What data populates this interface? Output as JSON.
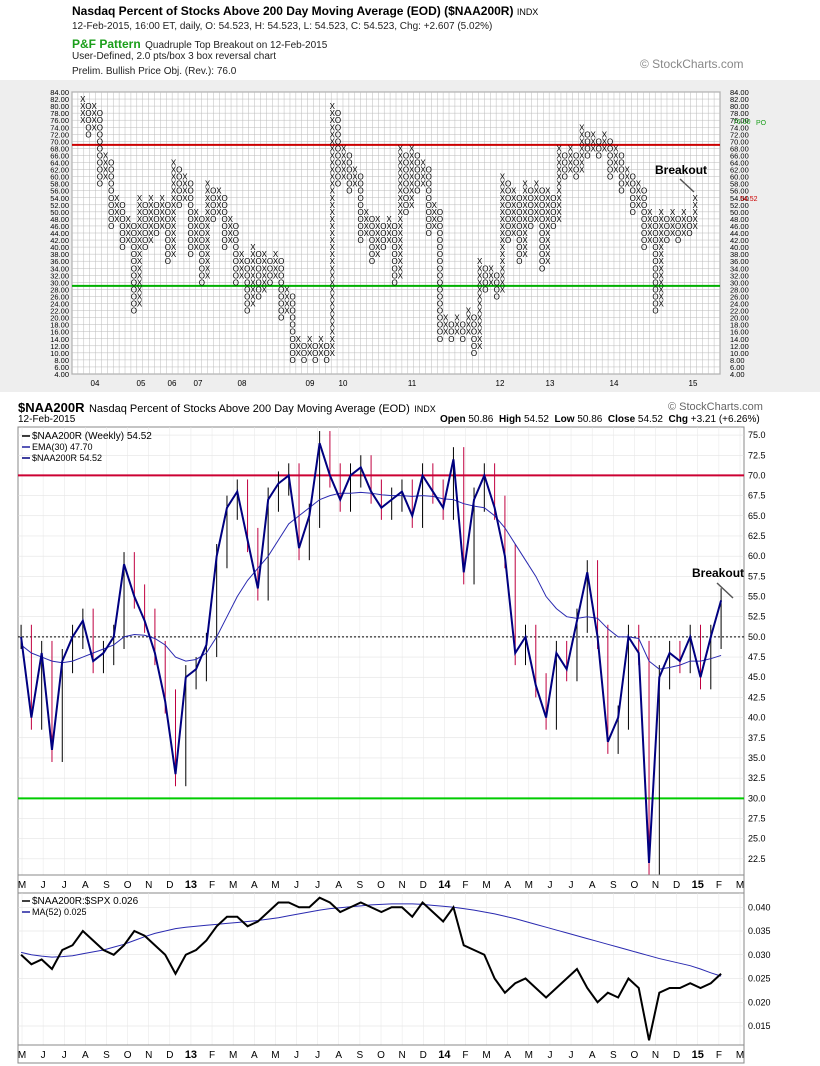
{
  "pf": {
    "title": "Nasdaq Percent of Stocks Above 200 Day Moving Average (EOD) ($NAA200R)",
    "exchange": "INDX",
    "info": "12-Feb-2015, 16:00 ET, daily, O: 54.523, H: 54.523, L: 54.523, C: 54.523, Chg: +2.607 (5.02%)",
    "pattern_label": "P&F Pattern",
    "pattern_text": "Quadruple Top Breakout on 12-Feb-2015",
    "box_info": "User-Defined, 2.0 pts/box 3 box reversal chart",
    "price_obj": "Prelim. Bullish Price Obj. (Rev.): 76.0",
    "watermark": "© StockCharts.com",
    "annotation": "Breakout",
    "po_label": "PO",
    "po_value": "76.00",
    "current_value": "54.52",
    "red_level": 70,
    "green_level": 30,
    "colors": {
      "red": "#cc0000",
      "green": "#00b000",
      "x": "#000000",
      "o": "#000000",
      "month": "#a00030"
    }
  },
  "main": {
    "symbol": "$NAA200R",
    "title": "Nasdaq Percent of Stocks Above 200 Day Moving Average (EOD)",
    "exchange": "INDX",
    "watermark": "© StockCharts.com",
    "date": "12-Feb-2015",
    "ohlc": {
      "open_label": "Open",
      "open": "50.86",
      "high_label": "High",
      "high": "54.52",
      "low_label": "Low",
      "low": "50.86",
      "close_label": "Close",
      "close": "54.52",
      "chg_label": "Chg",
      "chg": "+3.21 (+6.26%)"
    },
    "legend": [
      {
        "text": "$NAA200R (Weekly) 54.52",
        "color": "#000000"
      },
      {
        "text": "EMA(30) 47.70",
        "color": "#1f1f9f"
      },
      {
        "text": "$NAA200R 54.52",
        "color": "#000080"
      }
    ],
    "annotation": "Breakout",
    "colors": {
      "price": "#000080",
      "ema": "#2a2ab0",
      "red": "#cc0033",
      "green": "#00cc00"
    }
  },
  "ratio": {
    "legend": [
      {
        "text": "$NAA200R:$SPX 0.026",
        "color": "#000000"
      },
      {
        "text": "MA(52) 0.025",
        "color": "#1f1f9f"
      }
    ]
  },
  "chart_data": [
    {
      "type": "point-and-figure",
      "title": "Nasdaq Percent of Stocks Above 200 Day Moving Average (EOD) ($NAA200R)",
      "box_size": 2,
      "reversal": 3,
      "y_ticks": [
        84,
        82,
        80,
        78,
        76,
        74,
        72,
        70,
        68,
        66,
        64,
        62,
        60,
        58,
        56,
        54,
        52,
        50,
        48,
        46,
        44,
        42,
        40,
        38,
        36,
        34,
        32,
        30,
        28,
        26,
        24,
        22,
        20,
        18,
        16,
        14,
        12,
        10,
        8,
        6,
        4
      ],
      "ylim": [
        4,
        84
      ],
      "x_labels": [
        "04",
        "05",
        "06",
        "07",
        "08",
        "09",
        "10",
        "11",
        "12",
        "13",
        "14",
        "15"
      ],
      "columns": [
        {
          "t": "X",
          "lo": 76,
          "hi": 82
        },
        {
          "t": "O",
          "lo": 72,
          "hi": 80
        },
        {
          "t": "X",
          "lo": 74,
          "hi": 80
        },
        {
          "t": "O",
          "lo": 58,
          "hi": 78
        },
        {
          "t": "X",
          "lo": 60,
          "hi": 66
        },
        {
          "t": "O",
          "lo": 46,
          "hi": 64
        },
        {
          "t": "X",
          "lo": 48,
          "hi": 54
        },
        {
          "t": "O",
          "lo": 40,
          "hi": 52
        },
        {
          "t": "X",
          "lo": 42,
          "hi": 48
        },
        {
          "t": "O",
          "lo": 22,
          "hi": 46
        },
        {
          "t": "X",
          "lo": 24,
          "hi": 54
        },
        {
          "t": "O",
          "lo": 40,
          "hi": 52
        },
        {
          "t": "X",
          "lo": 42,
          "hi": 54
        },
        {
          "t": "O",
          "lo": 44,
          "hi": 52
        },
        {
          "t": "X",
          "lo": 46,
          "hi": 54
        },
        {
          "t": "O",
          "lo": 36,
          "hi": 52
        },
        {
          "t": "X",
          "lo": 38,
          "hi": 64
        },
        {
          "t": "O",
          "lo": 52,
          "hi": 62
        },
        {
          "t": "X",
          "lo": 54,
          "hi": 60
        },
        {
          "t": "O",
          "lo": 38,
          "hi": 58
        },
        {
          "t": "X",
          "lo": 40,
          "hi": 50
        },
        {
          "t": "O",
          "lo": 30,
          "hi": 48
        },
        {
          "t": "X",
          "lo": 32,
          "hi": 58
        },
        {
          "t": "O",
          "lo": 48,
          "hi": 56
        },
        {
          "t": "X",
          "lo": 50,
          "hi": 56
        },
        {
          "t": "O",
          "lo": 40,
          "hi": 54
        },
        {
          "t": "X",
          "lo": 42,
          "hi": 48
        },
        {
          "t": "O",
          "lo": 30,
          "hi": 46
        },
        {
          "t": "X",
          "lo": 32,
          "hi": 38
        },
        {
          "t": "O",
          "lo": 22,
          "hi": 36
        },
        {
          "t": "X",
          "lo": 24,
          "hi": 40
        },
        {
          "t": "O",
          "lo": 26,
          "hi": 38
        },
        {
          "t": "X",
          "lo": 28,
          "hi": 38
        },
        {
          "t": "O",
          "lo": 30,
          "hi": 36
        },
        {
          "t": "X",
          "lo": 32,
          "hi": 38
        },
        {
          "t": "O",
          "lo": 20,
          "hi": 36
        },
        {
          "t": "X",
          "lo": 22,
          "hi": 28
        },
        {
          "t": "O",
          "lo": 8,
          "hi": 26
        },
        {
          "t": "X",
          "lo": 10,
          "hi": 14
        },
        {
          "t": "O",
          "lo": 8,
          "hi": 12
        },
        {
          "t": "X",
          "lo": 10,
          "hi": 14
        },
        {
          "t": "O",
          "lo": 8,
          "hi": 12
        },
        {
          "t": "X",
          "lo": 10,
          "hi": 14
        },
        {
          "t": "O",
          "lo": 8,
          "hi": 12
        },
        {
          "t": "X",
          "lo": 10,
          "hi": 80
        },
        {
          "t": "O",
          "lo": 58,
          "hi": 78
        },
        {
          "t": "X",
          "lo": 60,
          "hi": 68
        },
        {
          "t": "O",
          "lo": 56,
          "hi": 66
        },
        {
          "t": "X",
          "lo": 58,
          "hi": 62
        },
        {
          "t": "O",
          "lo": 42,
          "hi": 60
        },
        {
          "t": "X",
          "lo": 44,
          "hi": 50
        },
        {
          "t": "O",
          "lo": 36,
          "hi": 48
        },
        {
          "t": "X",
          "lo": 38,
          "hi": 48
        },
        {
          "t": "O",
          "lo": 40,
          "hi": 46
        },
        {
          "t": "X",
          "lo": 42,
          "hi": 48
        },
        {
          "t": "O",
          "lo": 30,
          "hi": 46
        },
        {
          "t": "X",
          "lo": 32,
          "hi": 68
        },
        {
          "t": "O",
          "lo": 50,
          "hi": 66
        },
        {
          "t": "X",
          "lo": 52,
          "hi": 68
        },
        {
          "t": "O",
          "lo": 56,
          "hi": 66
        },
        {
          "t": "X",
          "lo": 58,
          "hi": 64
        },
        {
          "t": "O",
          "lo": 44,
          "hi": 62
        },
        {
          "t": "X",
          "lo": 46,
          "hi": 52
        },
        {
          "t": "O",
          "lo": 14,
          "hi": 50
        },
        {
          "t": "X",
          "lo": 16,
          "hi": 20
        },
        {
          "t": "O",
          "lo": 14,
          "hi": 18
        },
        {
          "t": "X",
          "lo": 16,
          "hi": 20
        },
        {
          "t": "O",
          "lo": 14,
          "hi": 18
        },
        {
          "t": "X",
          "lo": 16,
          "hi": 22
        },
        {
          "t": "O",
          "lo": 10,
          "hi": 20
        },
        {
          "t": "X",
          "lo": 12,
          "hi": 36
        },
        {
          "t": "O",
          "lo": 28,
          "hi": 34
        },
        {
          "t": "X",
          "lo": 30,
          "hi": 34
        },
        {
          "t": "O",
          "lo": 26,
          "hi": 32
        },
        {
          "t": "X",
          "lo": 28,
          "hi": 60
        },
        {
          "t": "O",
          "lo": 42,
          "hi": 58
        },
        {
          "t": "X",
          "lo": 44,
          "hi": 56
        },
        {
          "t": "O",
          "lo": 36,
          "hi": 54
        },
        {
          "t": "X",
          "lo": 38,
          "hi": 58
        },
        {
          "t": "O",
          "lo": 46,
          "hi": 56
        },
        {
          "t": "X",
          "lo": 48,
          "hi": 58
        },
        {
          "t": "O",
          "lo": 34,
          "hi": 56
        },
        {
          "t": "X",
          "lo": 36,
          "hi": 56
        },
        {
          "t": "O",
          "lo": 46,
          "hi": 54
        },
        {
          "t": "X",
          "lo": 48,
          "hi": 68
        },
        {
          "t": "O",
          "lo": 60,
          "hi": 66
        },
        {
          "t": "X",
          "lo": 62,
          "hi": 68
        },
        {
          "t": "O",
          "lo": 60,
          "hi": 66
        },
        {
          "t": "X",
          "lo": 62,
          "hi": 74
        },
        {
          "t": "O",
          "lo": 66,
          "hi": 72
        },
        {
          "t": "X",
          "lo": 68,
          "hi": 72
        },
        {
          "t": "O",
          "lo": 66,
          "hi": 70
        },
        {
          "t": "X",
          "lo": 68,
          "hi": 72
        },
        {
          "t": "O",
          "lo": 60,
          "hi": 70
        },
        {
          "t": "X",
          "lo": 62,
          "hi": 68
        },
        {
          "t": "O",
          "lo": 56,
          "hi": 66
        },
        {
          "t": "X",
          "lo": 58,
          "hi": 62
        },
        {
          "t": "O",
          "lo": 50,
          "hi": 60
        },
        {
          "t": "X",
          "lo": 52,
          "hi": 58
        },
        {
          "t": "O",
          "lo": 40,
          "hi": 56
        },
        {
          "t": "X",
          "lo": 42,
          "hi": 50
        },
        {
          "t": "O",
          "lo": 22,
          "hi": 48
        },
        {
          "t": "X",
          "lo": 24,
          "hi": 50
        },
        {
          "t": "O",
          "lo": 42,
          "hi": 48
        },
        {
          "t": "X",
          "lo": 44,
          "hi": 50
        },
        {
          "t": "O",
          "lo": 42,
          "hi": 48
        },
        {
          "t": "X",
          "lo": 44,
          "hi": 50
        },
        {
          "t": "O",
          "lo": 44,
          "hi": 48
        },
        {
          "t": "X",
          "lo": 46,
          "hi": 54
        }
      ]
    },
    {
      "type": "line",
      "title": "$NAA200R Nasdaq Percent of Stocks Above 200 Day Moving Average (EOD)",
      "ylim": [
        20.5,
        76
      ],
      "y_ticks": [
        22.5,
        25,
        27.5,
        30,
        32.5,
        35,
        37.5,
        40,
        42.5,
        45,
        47.5,
        50,
        52.5,
        55,
        57.5,
        60,
        62.5,
        65,
        67.5,
        70,
        72.5,
        75
      ],
      "x_labels": [
        "M",
        "J",
        "J",
        "A",
        "S",
        "O",
        "N",
        "D",
        "13",
        "F",
        "M",
        "A",
        "M",
        "J",
        "J",
        "A",
        "S",
        "O",
        "N",
        "D",
        "14",
        "F",
        "M",
        "A",
        "M",
        "J",
        "J",
        "A",
        "S",
        "O",
        "N",
        "D",
        "15",
        "F",
        "M"
      ],
      "reference_lines": [
        70,
        50,
        30
      ],
      "series": [
        {
          "name": "$NAA200R (Weekly) 54.52",
          "values": [
            50,
            40,
            48,
            36,
            47,
            50,
            52,
            47,
            48,
            50,
            59,
            55,
            52,
            48,
            42,
            33,
            45,
            46,
            49,
            60,
            66,
            68,
            62,
            56,
            67,
            69,
            70,
            61,
            65,
            74,
            70,
            67,
            70,
            71,
            68,
            66,
            67,
            68,
            65,
            70,
            68,
            66,
            72,
            58,
            67,
            70,
            66,
            60,
            48,
            50,
            44,
            40,
            48,
            46,
            52,
            58,
            50,
            37,
            40,
            50,
            48,
            22,
            45,
            48,
            47,
            50,
            45,
            50,
            54.52
          ]
        },
        {
          "name": "EMA(30) 47.70",
          "values": [
            49,
            48,
            47.5,
            47,
            46.8,
            47,
            47.5,
            48,
            48.5,
            49,
            50,
            50.3,
            50.2,
            49.8,
            49,
            47.5,
            47,
            47.2,
            48,
            50,
            52.5,
            55,
            57,
            58.5,
            60,
            62,
            64,
            65,
            66,
            67,
            67.5,
            67.8,
            67.8,
            67.9,
            67.8,
            67.6,
            67.5,
            67.5,
            67.4,
            67.5,
            67.4,
            67.1,
            67,
            66.5,
            66.2,
            66,
            65,
            63.5,
            61.5,
            59.5,
            57.5,
            55,
            53.5,
            52.5,
            52.3,
            52.5,
            52.3,
            51,
            50,
            50,
            49.8,
            47,
            46,
            46.2,
            46.5,
            47,
            47,
            47.3,
            47.7
          ]
        }
      ]
    },
    {
      "type": "line",
      "title": "$NAA200R:$SPX",
      "ylim": [
        0.011,
        0.043
      ],
      "y_ticks": [
        0.015,
        0.02,
        0.025,
        0.03,
        0.035,
        0.04
      ],
      "series": [
        {
          "name": "$NAA200R:$SPX 0.026",
          "values": [
            0.03,
            0.028,
            0.029,
            0.027,
            0.031,
            0.032,
            0.035,
            0.033,
            0.031,
            0.03,
            0.032,
            0.035,
            0.034,
            0.032,
            0.03,
            0.026,
            0.03,
            0.031,
            0.033,
            0.036,
            0.038,
            0.038,
            0.036,
            0.037,
            0.039,
            0.041,
            0.041,
            0.04,
            0.04,
            0.042,
            0.041,
            0.039,
            0.04,
            0.041,
            0.04,
            0.039,
            0.04,
            0.04,
            0.038,
            0.041,
            0.039,
            0.037,
            0.04,
            0.032,
            0.031,
            0.03,
            0.025,
            0.022,
            0.024,
            0.025,
            0.023,
            0.021,
            0.023,
            0.025,
            0.027,
            0.023,
            0.02,
            0.022,
            0.021,
            0.025,
            0.023,
            0.012,
            0.022,
            0.023,
            0.023,
            0.024,
            0.023,
            0.024,
            0.026
          ]
        },
        {
          "name": "MA(52) 0.025",
          "values": [
            0.0305,
            0.03,
            0.0297,
            0.0295,
            0.0296,
            0.0298,
            0.0302,
            0.0306,
            0.031,
            0.0316,
            0.0322,
            0.033,
            0.0338,
            0.0345,
            0.035,
            0.0355,
            0.0358,
            0.036,
            0.0362,
            0.0364,
            0.0366,
            0.0368,
            0.037,
            0.0372,
            0.0375,
            0.0378,
            0.0382,
            0.0386,
            0.039,
            0.0394,
            0.0397,
            0.0399,
            0.0401,
            0.0403,
            0.0405,
            0.0406,
            0.0407,
            0.0407,
            0.0407,
            0.0406,
            0.0404,
            0.0402,
            0.04,
            0.0397,
            0.0394,
            0.039,
            0.0386,
            0.0381,
            0.0376,
            0.037,
            0.0364,
            0.0358,
            0.0352,
            0.0346,
            0.034,
            0.0334,
            0.0328,
            0.0322,
            0.0316,
            0.031,
            0.0304,
            0.0298,
            0.0292,
            0.0287,
            0.0282,
            0.0277,
            0.027,
            0.0262,
            0.0255
          ]
        }
      ]
    }
  ]
}
